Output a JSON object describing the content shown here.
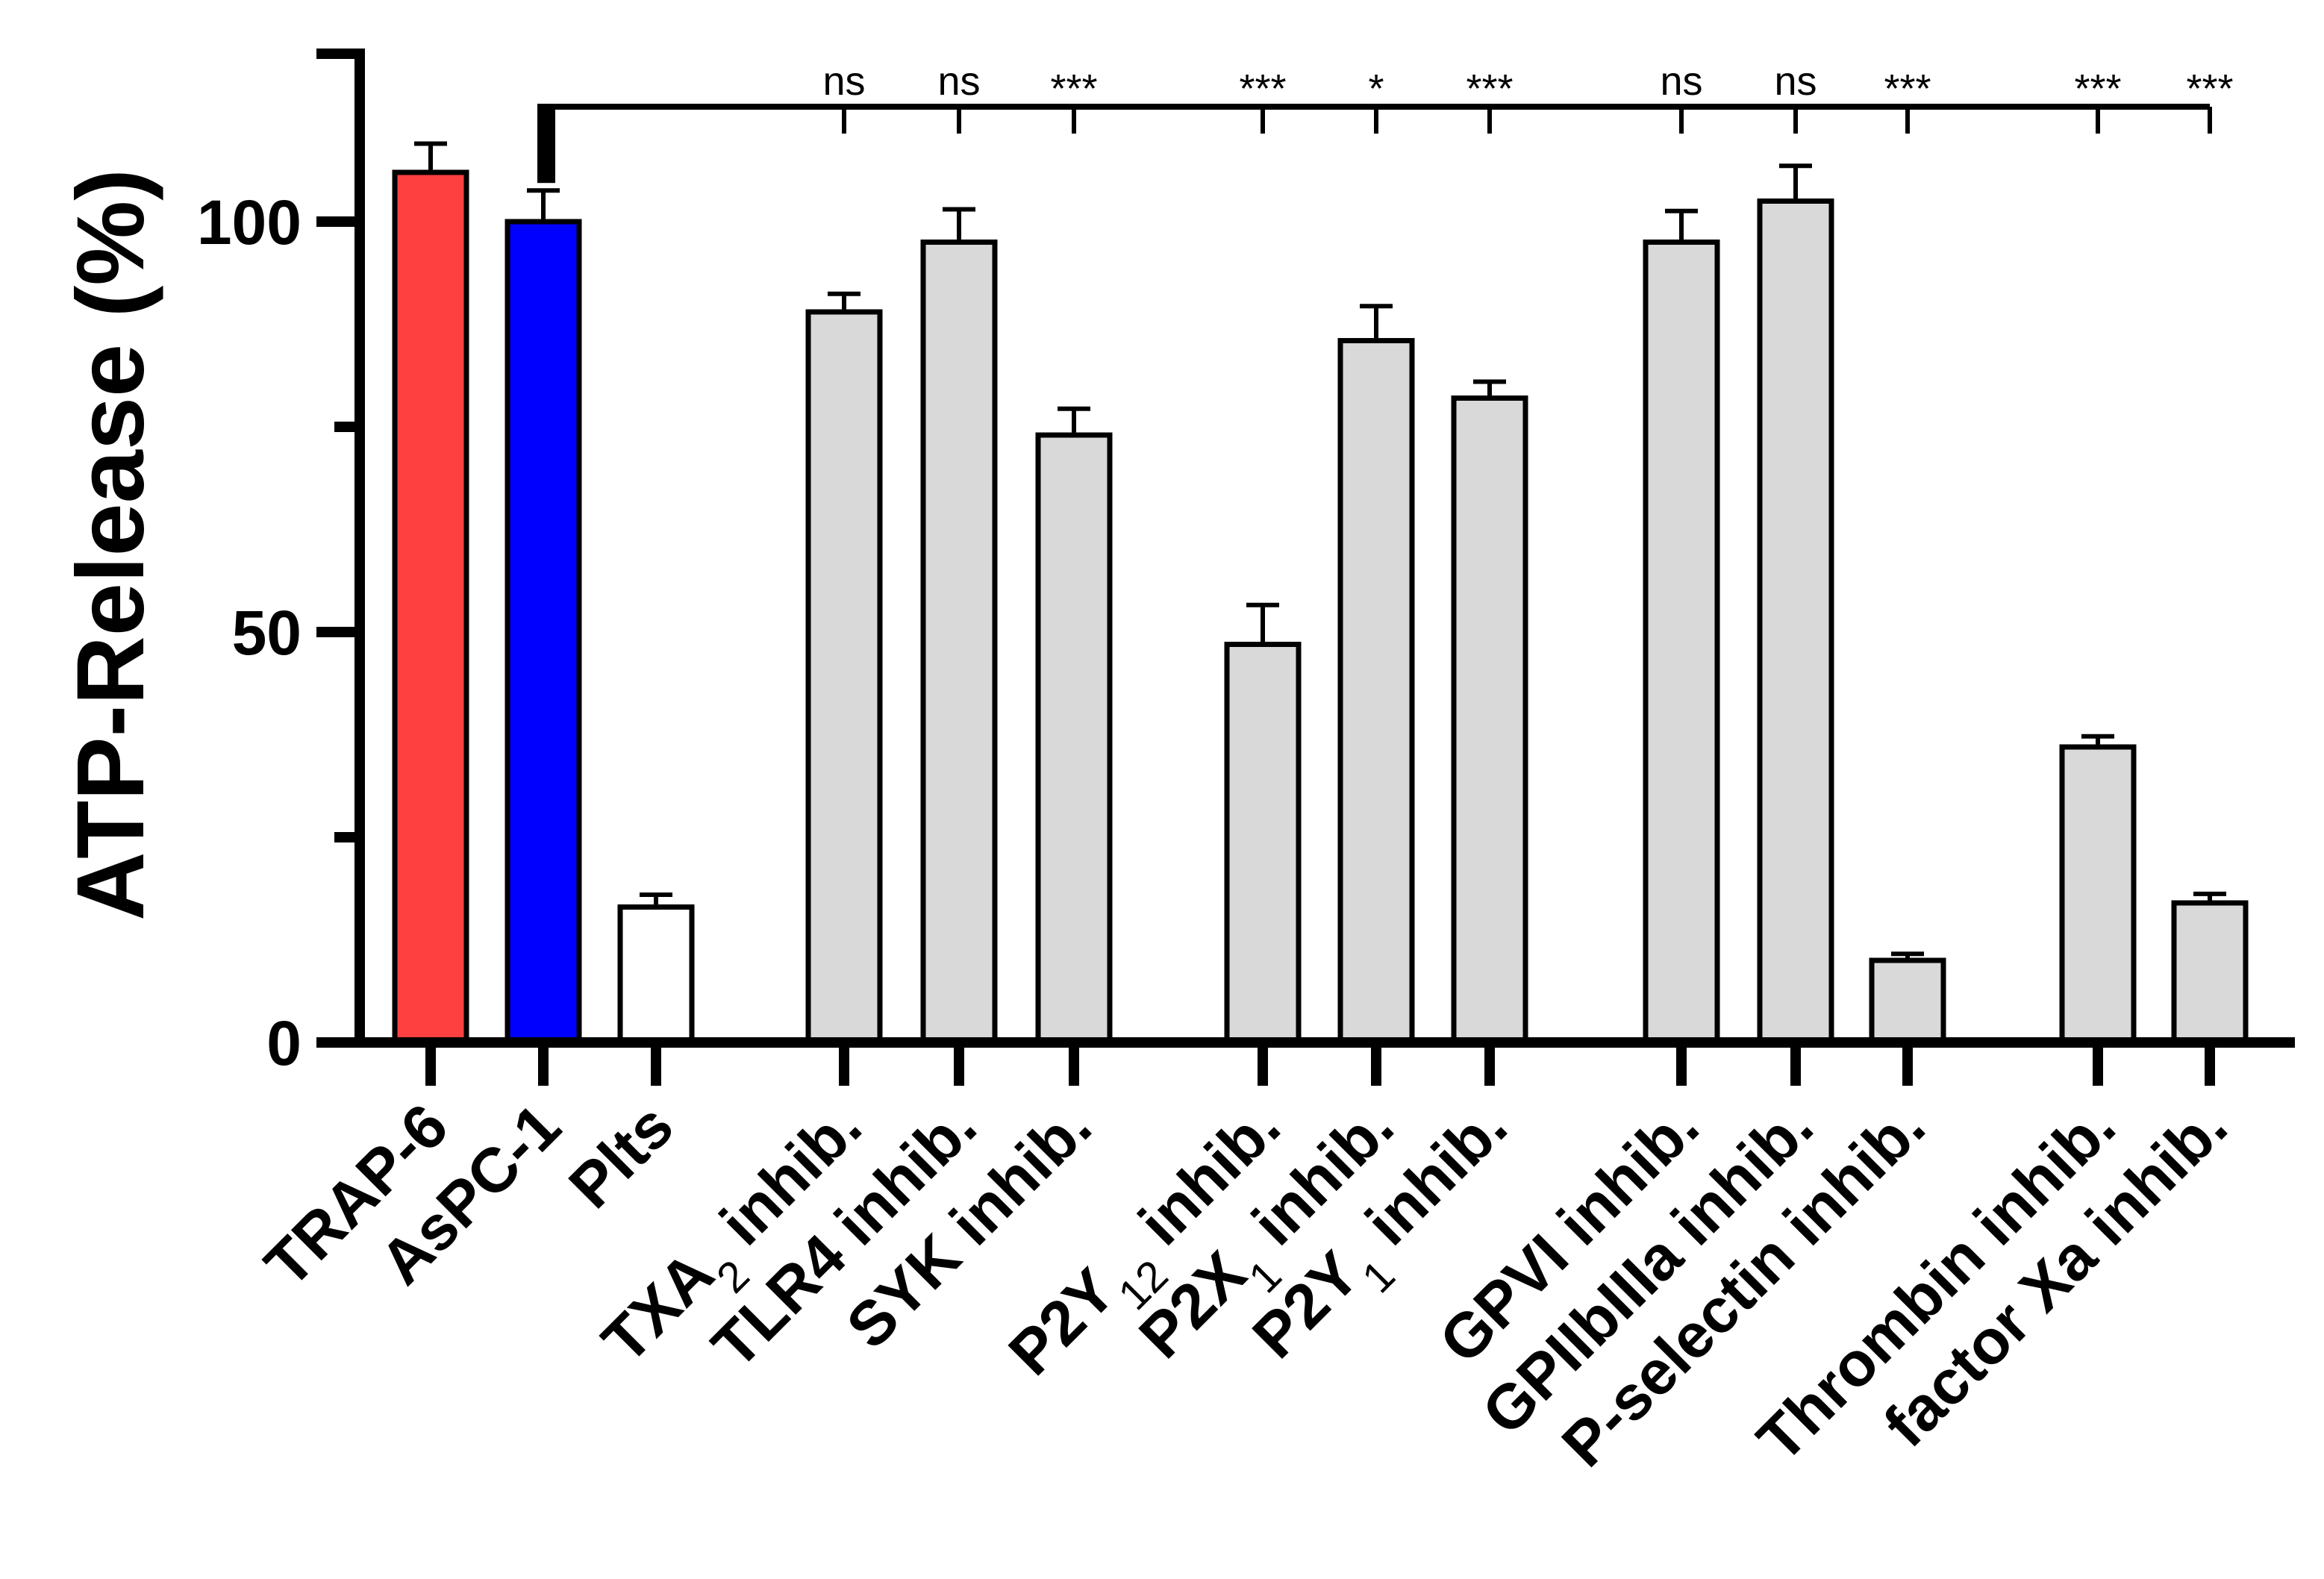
{
  "chart_data": {
    "type": "bar",
    "title": "",
    "xlabel": "",
    "ylabel": "ATP-Release (%)",
    "ylim": [
      0,
      120
    ],
    "yticks": [
      0,
      50,
      100
    ],
    "minor_yticks": [
      25,
      75
    ],
    "grid": false,
    "legend": "none",
    "categories": [
      {
        "parts": [
          {
            "t": "TRAP-6"
          }
        ]
      },
      {
        "parts": [
          {
            "t": "AsPC-1"
          }
        ]
      },
      {
        "parts": [
          {
            "t": "Plts"
          }
        ]
      },
      {
        "parts": [
          {
            "t": "TXA"
          },
          {
            "t": "2",
            "sub": true
          },
          {
            "t": " inhib."
          }
        ]
      },
      {
        "parts": [
          {
            "t": "TLR4 inhib."
          }
        ]
      },
      {
        "parts": [
          {
            "t": "SYK inhib."
          }
        ]
      },
      {
        "parts": [
          {
            "t": "P2Y"
          },
          {
            "t": "12",
            "sub": true
          },
          {
            "t": " inhib."
          }
        ]
      },
      {
        "parts": [
          {
            "t": "P2X"
          },
          {
            "t": "1",
            "sub": true
          },
          {
            "t": " inhib."
          }
        ]
      },
      {
        "parts": [
          {
            "t": "P2Y"
          },
          {
            "t": "1",
            "sub": true
          },
          {
            "t": " inhib."
          }
        ]
      },
      {
        "parts": [
          {
            "t": "GPVI inhib."
          }
        ]
      },
      {
        "parts": [
          {
            "t": "GPIIbIIIa inhib."
          }
        ]
      },
      {
        "parts": [
          {
            "t": "P-selectin inhib."
          }
        ]
      },
      {
        "parts": [
          {
            "t": "Thrombin inhib."
          }
        ]
      },
      {
        "parts": [
          {
            "t": "factor Xa inhib."
          }
        ]
      }
    ],
    "values": [
      106,
      100,
      16.5,
      89,
      97.5,
      74,
      48.5,
      85.5,
      78.5,
      97.5,
      102.5,
      10,
      36,
      17
    ],
    "errors": [
      3.5,
      3.8,
      1.5,
      2.2,
      4.0,
      3.2,
      4.8,
      4.2,
      2.0,
      3.8,
      4.3,
      0.8,
      1.3,
      1.1
    ],
    "bar_colors": [
      "#ff4040",
      "#0000ff",
      "#ffffff",
      "#d9d9d9",
      "#d9d9d9",
      "#d9d9d9",
      "#d9d9d9",
      "#d9d9d9",
      "#d9d9d9",
      "#d9d9d9",
      "#d9d9d9",
      "#d9d9d9",
      "#d9d9d9",
      "#d9d9d9"
    ],
    "comparison_reference": "AsPC-1",
    "significance": [
      "",
      "",
      "",
      "ns",
      "ns",
      "***",
      "***",
      "*",
      "***",
      "ns",
      "ns",
      "***",
      "***",
      "***"
    ]
  }
}
